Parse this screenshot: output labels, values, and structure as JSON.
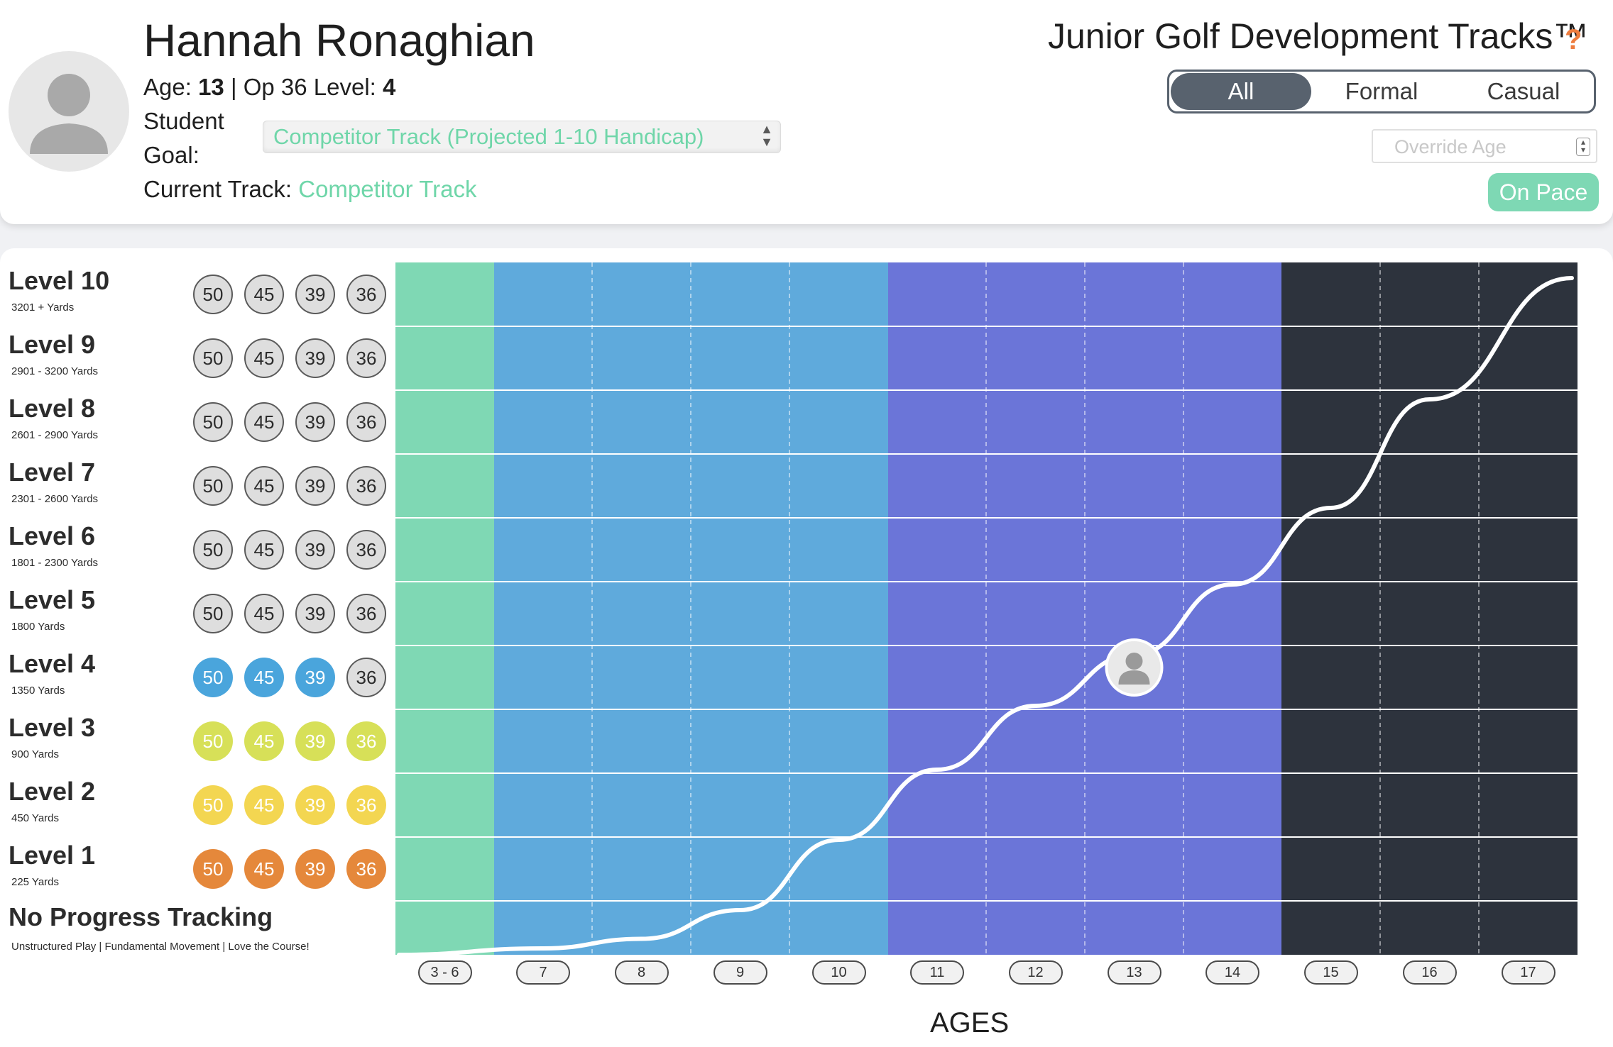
{
  "header": {
    "student_name": "Hannah Ronaghian",
    "age_label": "Age:",
    "age_value": "13",
    "separator": "|",
    "op36_label": "Op 36 Level:",
    "op36_value": "4",
    "goal_label_line1": "Student",
    "goal_label_line2": "Goal:",
    "goal_value": "Competitor Track (Projected 1-10 Handicap)",
    "current_track_label": "Current Track:",
    "current_track_value": "Competitor Track",
    "tracks_title": "Junior Golf Development Tracks™",
    "help_symbol": "?",
    "filter_options": [
      "All",
      "Formal",
      "Casual"
    ],
    "selected_filter": "All",
    "override_age_placeholder": "Override Age",
    "status_badge": "On Pace",
    "icons": {
      "avatar": "user-silhouette-icon",
      "help": "question-mark-icon",
      "select": "up-down-arrows-icon"
    }
  },
  "levels": [
    {
      "title": "Level 10",
      "yards": "3201 + Yards",
      "scores": [
        "50",
        "45",
        "39",
        "36"
      ],
      "colors": [
        "gray",
        "gray",
        "gray",
        "gray"
      ]
    },
    {
      "title": "Level 9",
      "yards": "2901 - 3200 Yards",
      "scores": [
        "50",
        "45",
        "39",
        "36"
      ],
      "colors": [
        "gray",
        "gray",
        "gray",
        "gray"
      ]
    },
    {
      "title": "Level 8",
      "yards": "2601 - 2900 Yards",
      "scores": [
        "50",
        "45",
        "39",
        "36"
      ],
      "colors": [
        "gray",
        "gray",
        "gray",
        "gray"
      ]
    },
    {
      "title": "Level 7",
      "yards": "2301 - 2600 Yards",
      "scores": [
        "50",
        "45",
        "39",
        "36"
      ],
      "colors": [
        "gray",
        "gray",
        "gray",
        "gray"
      ]
    },
    {
      "title": "Level 6",
      "yards": "1801 - 2300 Yards",
      "scores": [
        "50",
        "45",
        "39",
        "36"
      ],
      "colors": [
        "gray",
        "gray",
        "gray",
        "gray"
      ]
    },
    {
      "title": "Level 5",
      "yards": "1800 Yards",
      "scores": [
        "50",
        "45",
        "39",
        "36"
      ],
      "colors": [
        "gray",
        "gray",
        "gray",
        "gray"
      ]
    },
    {
      "title": "Level 4",
      "yards": "1350 Yards",
      "scores": [
        "50",
        "45",
        "39",
        "36"
      ],
      "colors": [
        "blue",
        "blue",
        "blue",
        "gray"
      ]
    },
    {
      "title": "Level 3",
      "yards": "900 Yards",
      "scores": [
        "50",
        "45",
        "39",
        "36"
      ],
      "colors": [
        "lime",
        "lime",
        "lime",
        "lime"
      ]
    },
    {
      "title": "Level 2",
      "yards": "450 Yards",
      "scores": [
        "50",
        "45",
        "39",
        "36"
      ],
      "colors": [
        "yellow",
        "yellow",
        "yellow",
        "yellow"
      ]
    },
    {
      "title": "Level 1",
      "yards": "225 Yards",
      "scores": [
        "50",
        "45",
        "39",
        "36"
      ],
      "colors": [
        "orange",
        "orange",
        "orange",
        "orange"
      ]
    }
  ],
  "no_progress": {
    "title": "No Progress Tracking",
    "subtitle": "Unstructured Play | Fundamental Movement | Love the Course!"
  },
  "chart_data": {
    "type": "line",
    "x_categories": [
      "3 - 6",
      "7",
      "8",
      "9",
      "10",
      "11",
      "12",
      "13",
      "14",
      "15",
      "16",
      "17"
    ],
    "xlabel": "AGES",
    "y_categories": [
      "No Progress Tracking",
      "Level 1",
      "Level 2",
      "Level 3",
      "Level 4",
      "Level 5",
      "Level 6",
      "Level 7",
      "Level 8",
      "Level 9",
      "Level 10"
    ],
    "band_colors": [
      "#7fd8b4",
      "#5faadc",
      "#6b75d8",
      "#2d333d"
    ],
    "series": [
      {
        "x": [
          "3 - 6",
          "7",
          "8",
          "9",
          "10",
          "11",
          "12",
          "13",
          "14",
          "15",
          "16",
          "17"
        ],
        "y": [
          0.0,
          0.1,
          0.25,
          0.7,
          1.8,
          2.9,
          3.9,
          4.7,
          5.8,
          7.0,
          8.7,
          10.6
        ]
      }
    ],
    "marker": {
      "x": "13",
      "y": 4.5,
      "icon": "user-silhouette-icon"
    }
  }
}
